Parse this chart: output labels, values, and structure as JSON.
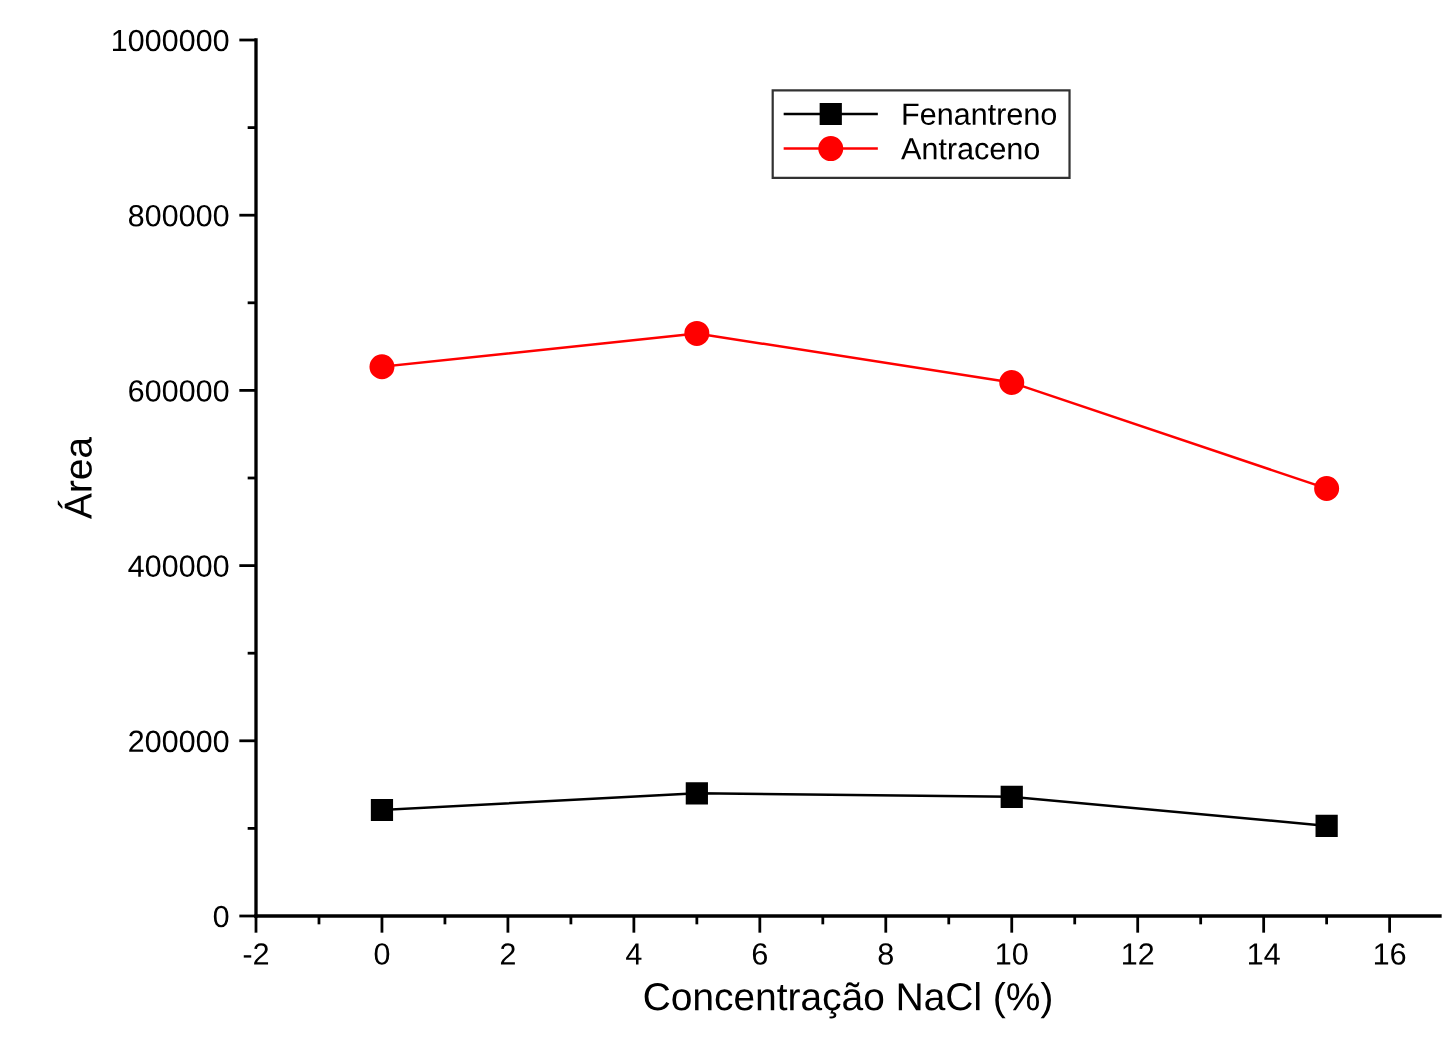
{
  "chart_data": {
    "type": "line",
    "xlabel": "Concentração NaCl (%)",
    "ylabel": "Área",
    "x": [
      0,
      5,
      10,
      15
    ],
    "series": [
      {
        "name": "Fenantreno",
        "color": "#000000",
        "marker": "square",
        "values": [
          121000,
          140000,
          136000,
          103000
        ]
      },
      {
        "name": "Antraceno",
        "color": "#ff0000",
        "marker": "circle",
        "values": [
          627000,
          665000,
          609000,
          488000
        ]
      }
    ],
    "xlim": [
      -2,
      16.8
    ],
    "xticks": [
      -2,
      0,
      2,
      4,
      6,
      8,
      10,
      12,
      14,
      16
    ],
    "ylim": [
      0,
      1000000
    ],
    "yticks": [
      0,
      200000,
      400000,
      600000,
      800000,
      1000000
    ],
    "grid": false,
    "legend": "top right",
    "line_style": "solid"
  }
}
